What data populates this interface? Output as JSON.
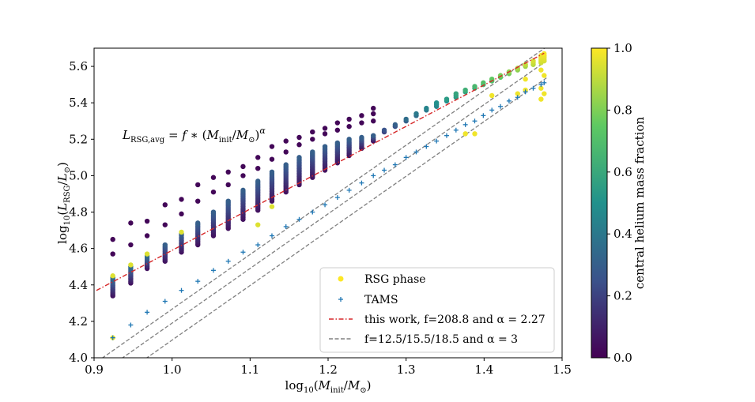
{
  "chart_data": {
    "type": "scatter",
    "title": "",
    "xlabel": "log10(Minit/M⊙)",
    "ylabel": "log10(LRSG/L⊙)",
    "xlim": [
      0.9,
      1.5
    ],
    "ylim": [
      4.0,
      5.7
    ],
    "xticks": [
      "0.9",
      "1.0",
      "1.1",
      "1.2",
      "1.3",
      "1.4",
      "1.5"
    ],
    "yticks": [
      "4.0",
      "4.2",
      "4.4",
      "4.6",
      "4.8",
      "5.0",
      "5.2",
      "5.4",
      "5.6"
    ],
    "annotation": "LRSG,avg = f * (Minit/M⊙)^α",
    "colorbar": {
      "label": "central helium mass fraction",
      "range": [
        0.0,
        1.0
      ],
      "ticks": [
        "0.0",
        "0.2",
        "0.4",
        "0.6",
        "0.8",
        "1.0"
      ],
      "colormap": [
        "#440154",
        "#3b528b",
        "#21918c",
        "#5ec962",
        "#fde725"
      ]
    },
    "legend": {
      "position": "lower-right",
      "entries": [
        {
          "label": "RSG phase",
          "marker": "dot",
          "color": "#fde725"
        },
        {
          "label": "TAMS",
          "marker": "plus",
          "color": "#1f77b4"
        },
        {
          "label": "this work, f=208.8 and α = 2.27",
          "marker": "dashdot",
          "color": "#d62728"
        },
        {
          "label": "f=12.5/15.5/18.5 and α = 3",
          "marker": "dashed",
          "color": "#808080"
        }
      ]
    },
    "fit_line": {
      "f": 208.8,
      "alpha": 2.27,
      "x_range": [
        0.903,
        1.477
      ]
    },
    "reference_lines": [
      {
        "f": 12.5,
        "alpha": 3,
        "x_range": [
          0.91,
          1.48
        ]
      },
      {
        "f": 15.5,
        "alpha": 3,
        "x_range": [
          0.91,
          1.48
        ]
      },
      {
        "f": 18.5,
        "alpha": 3,
        "x_range": [
          0.91,
          1.48
        ]
      }
    ],
    "tams": {
      "x": [
        0.924,
        0.947,
        0.968,
        0.991,
        1.012,
        1.033,
        1.053,
        1.072,
        1.091,
        1.11,
        1.128,
        1.146,
        1.163,
        1.18,
        1.196,
        1.212,
        1.227,
        1.243,
        1.258,
        1.272,
        1.286,
        1.3,
        1.313,
        1.326,
        1.339,
        1.352,
        1.364,
        1.376,
        1.388,
        1.399,
        1.41,
        1.421,
        1.432,
        1.443,
        1.453,
        1.463,
        1.473,
        1.477
      ],
      "y": [
        4.11,
        4.18,
        4.25,
        4.31,
        4.37,
        4.42,
        4.48,
        4.53,
        4.58,
        4.62,
        4.67,
        4.72,
        4.76,
        4.8,
        4.84,
        4.88,
        4.92,
        4.96,
        5.0,
        5.03,
        5.06,
        5.1,
        5.13,
        5.16,
        5.19,
        5.22,
        5.25,
        5.28,
        5.3,
        5.33,
        5.36,
        5.38,
        5.41,
        5.43,
        5.46,
        5.48,
        5.5,
        5.51
      ]
    },
    "rsg_bands": [
      {
        "x": 0.924,
        "y_min": 4.34,
        "y_max": 4.44,
        "outliers": [
          [
            4.57,
            0.02
          ],
          [
            4.65,
            0.02
          ],
          [
            4.11,
            0.98
          ],
          [
            4.45,
            0.95
          ]
        ]
      },
      {
        "x": 0.947,
        "y_min": 4.41,
        "y_max": 4.5,
        "outliers": [
          [
            4.62,
            0.02
          ],
          [
            4.74,
            0.02
          ],
          [
            4.51,
            0.95
          ]
        ]
      },
      {
        "x": 0.968,
        "y_min": 4.49,
        "y_max": 4.56,
        "outliers": [
          [
            4.67,
            0.02
          ],
          [
            4.75,
            0.02
          ],
          [
            4.57,
            0.95
          ]
        ]
      },
      {
        "x": 0.991,
        "y_min": 4.53,
        "y_max": 4.62,
        "outliers": [
          [
            4.73,
            0.02
          ],
          [
            4.84,
            0.02
          ]
        ]
      },
      {
        "x": 1.012,
        "y_min": 4.58,
        "y_max": 4.68,
        "outliers": [
          [
            4.79,
            0.02
          ],
          [
            4.87,
            0.02
          ],
          [
            4.69,
            0.95
          ]
        ]
      },
      {
        "x": 1.033,
        "y_min": 4.62,
        "y_max": 4.74,
        "outliers": [
          [
            4.86,
            0.02
          ],
          [
            4.95,
            0.02
          ]
        ]
      },
      {
        "x": 1.053,
        "y_min": 4.67,
        "y_max": 4.8,
        "outliers": [
          [
            4.91,
            0.02
          ],
          [
            4.99,
            0.02
          ]
        ]
      },
      {
        "x": 1.072,
        "y_min": 4.71,
        "y_max": 4.86,
        "outliers": [
          [
            4.95,
            0.02
          ],
          [
            5.02,
            0.02
          ]
        ]
      },
      {
        "x": 1.091,
        "y_min": 4.76,
        "y_max": 4.92,
        "outliers": [
          [
            5.0,
            0.02
          ],
          [
            5.05,
            0.02
          ]
        ]
      },
      {
        "x": 1.11,
        "y_min": 4.81,
        "y_max": 4.97,
        "outliers": [
          [
            5.04,
            0.02
          ],
          [
            5.1,
            0.02
          ],
          [
            4.73,
            0.95
          ]
        ]
      },
      {
        "x": 1.128,
        "y_min": 4.86,
        "y_max": 5.02,
        "outliers": [
          [
            5.09,
            0.02
          ],
          [
            5.16,
            0.02
          ],
          [
            4.83,
            0.95
          ]
        ]
      },
      {
        "x": 1.146,
        "y_min": 4.91,
        "y_max": 5.06,
        "outliers": [
          [
            5.13,
            0.02
          ],
          [
            5.19,
            0.02
          ]
        ]
      },
      {
        "x": 1.163,
        "y_min": 4.95,
        "y_max": 5.1,
        "outliers": [
          [
            5.17,
            0.02
          ],
          [
            5.21,
            0.02
          ]
        ]
      },
      {
        "x": 1.18,
        "y_min": 4.99,
        "y_max": 5.13,
        "outliers": [
          [
            5.2,
            0.02
          ],
          [
            5.24,
            0.02
          ]
        ]
      },
      {
        "x": 1.196,
        "y_min": 5.03,
        "y_max": 5.16,
        "outliers": [
          [
            5.23,
            0.02
          ],
          [
            5.26,
            0.02
          ]
        ]
      },
      {
        "x": 1.212,
        "y_min": 5.07,
        "y_max": 5.18,
        "outliers": [
          [
            5.25,
            0.02
          ],
          [
            5.29,
            0.02
          ]
        ]
      },
      {
        "x": 1.227,
        "y_min": 5.11,
        "y_max": 5.2,
        "outliers": [
          [
            5.27,
            0.02
          ],
          [
            5.31,
            0.02
          ]
        ]
      },
      {
        "x": 1.243,
        "y_min": 5.15,
        "y_max": 5.21,
        "outliers": [
          [
            5.29,
            0.02
          ],
          [
            5.33,
            0.02
          ]
        ]
      },
      {
        "x": 1.258,
        "y_min": 5.19,
        "y_max": 5.22,
        "outliers": [
          [
            5.3,
            0.02
          ],
          [
            5.34,
            0.02
          ],
          [
            5.37,
            0.02
          ]
        ]
      },
      {
        "x": 1.272,
        "y_min": 5.24,
        "y_max": 5.25,
        "outliers": []
      },
      {
        "x": 1.286,
        "y_min": 5.27,
        "y_max": 5.28,
        "outliers": []
      },
      {
        "x": 1.3,
        "y_min": 5.3,
        "y_max": 5.31,
        "outliers": []
      },
      {
        "x": 1.313,
        "y_min": 5.33,
        "y_max": 5.34,
        "outliers": []
      },
      {
        "x": 1.326,
        "y_min": 5.36,
        "y_max": 5.37,
        "outliers": []
      },
      {
        "x": 1.339,
        "y_min": 5.38,
        "y_max": 5.4,
        "outliers": []
      },
      {
        "x": 1.352,
        "y_min": 5.41,
        "y_max": 5.42,
        "outliers": []
      },
      {
        "x": 1.364,
        "y_min": 5.43,
        "y_max": 5.45,
        "outliers": []
      },
      {
        "x": 1.376,
        "y_min": 5.46,
        "y_max": 5.47,
        "outliers": [
          [
            5.23,
            0.98
          ]
        ]
      },
      {
        "x": 1.388,
        "y_min": 5.48,
        "y_max": 5.49,
        "outliers": [
          [
            5.23,
            0.98
          ]
        ]
      },
      {
        "x": 1.399,
        "y_min": 5.5,
        "y_max": 5.51,
        "outliers": []
      },
      {
        "x": 1.41,
        "y_min": 5.52,
        "y_max": 5.53,
        "outliers": [
          [
            5.44,
            0.98
          ]
        ]
      },
      {
        "x": 1.421,
        "y_min": 5.54,
        "y_max": 5.55,
        "outliers": []
      },
      {
        "x": 1.432,
        "y_min": 5.56,
        "y_max": 5.57,
        "outliers": []
      },
      {
        "x": 1.443,
        "y_min": 5.58,
        "y_max": 5.59,
        "outliers": [
          [
            5.45,
            0.98
          ]
        ]
      },
      {
        "x": 1.453,
        "y_min": 5.6,
        "y_max": 5.61,
        "outliers": [
          [
            5.53,
            0.98
          ],
          [
            5.47,
            0.98
          ]
        ]
      },
      {
        "x": 1.463,
        "y_min": 5.61,
        "y_max": 5.63,
        "outliers": []
      },
      {
        "x": 1.473,
        "y_min": 5.62,
        "y_max": 5.66,
        "outliers": [
          [
            5.42,
            0.98
          ],
          [
            5.48,
            0.98
          ],
          [
            5.58,
            0.98
          ]
        ]
      },
      {
        "x": 1.477,
        "y_min": 5.63,
        "y_max": 5.67,
        "outliers": [
          [
            5.45,
            0.98
          ],
          [
            5.55,
            0.98
          ]
        ]
      }
    ]
  }
}
